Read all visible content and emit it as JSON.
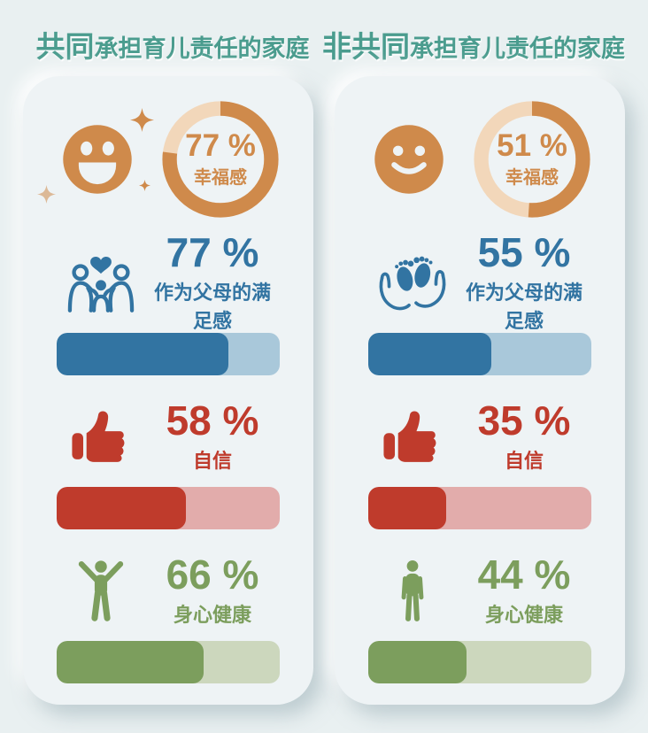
{
  "colors": {
    "page_bg": "#e9f0f1",
    "card_bg": "#eef3f5",
    "title_teal": "#4a9c8e",
    "happiness_orange": "#cf8a4b",
    "happiness_track": "#f2d7ba",
    "satisfaction_blue": "#3274a2",
    "satisfaction_track": "#a9c8da",
    "confidence_red": "#bf3b2c",
    "confidence_track": "#e2acab",
    "health_green": "#7c9e5d",
    "health_track": "#ccd7bd"
  },
  "cards": [
    {
      "title": {
        "strong": "共同",
        "rest": "承担育儿责任的家庭"
      },
      "happiness": {
        "pct": 77,
        "pct_label": "77 %",
        "label": "幸福感",
        "icon": "laughing-face-with-sparkles-icon"
      },
      "metrics": [
        {
          "pct": 77,
          "pct_label": "77 %",
          "label": "作为父母的满足感",
          "icon": "family-embrace-heart-icon"
        },
        {
          "pct": 58,
          "pct_label": "58 %",
          "label": "自信",
          "icon": "thumbs-up-icon"
        },
        {
          "pct": 66,
          "pct_label": "66 %",
          "label": "身心健康",
          "icon": "person-arms-raised-icon"
        }
      ]
    },
    {
      "title": {
        "strong": "非共同",
        "rest": "承担育儿责任的家庭"
      },
      "happiness": {
        "pct": 51,
        "pct_label": "51 %",
        "label": "幸福感",
        "icon": "smiling-face-icon"
      },
      "metrics": [
        {
          "pct": 55,
          "pct_label": "55 %",
          "label": "作为父母的满足感",
          "icon": "baby-feet-in-hands-icon"
        },
        {
          "pct": 35,
          "pct_label": "35 %",
          "label": "自信",
          "icon": "thumbs-up-icon"
        },
        {
          "pct": 44,
          "pct_label": "44 %",
          "label": "身心健康",
          "icon": "person-standing-icon"
        }
      ]
    }
  ],
  "chart_data": {
    "type": "bar",
    "categories": [
      "幸福感",
      "作为父母的满足感",
      "自信",
      "身心健康"
    ],
    "series": [
      {
        "name": "共同承担育儿责任的家庭",
        "values": [
          77,
          77,
          58,
          66
        ]
      },
      {
        "name": "非共同承担育儿责任的家庭",
        "values": [
          51,
          55,
          35,
          44
        ]
      }
    ],
    "unit": "%",
    "value_range": [
      0,
      100
    ],
    "legend_position": "top",
    "grid": false
  }
}
